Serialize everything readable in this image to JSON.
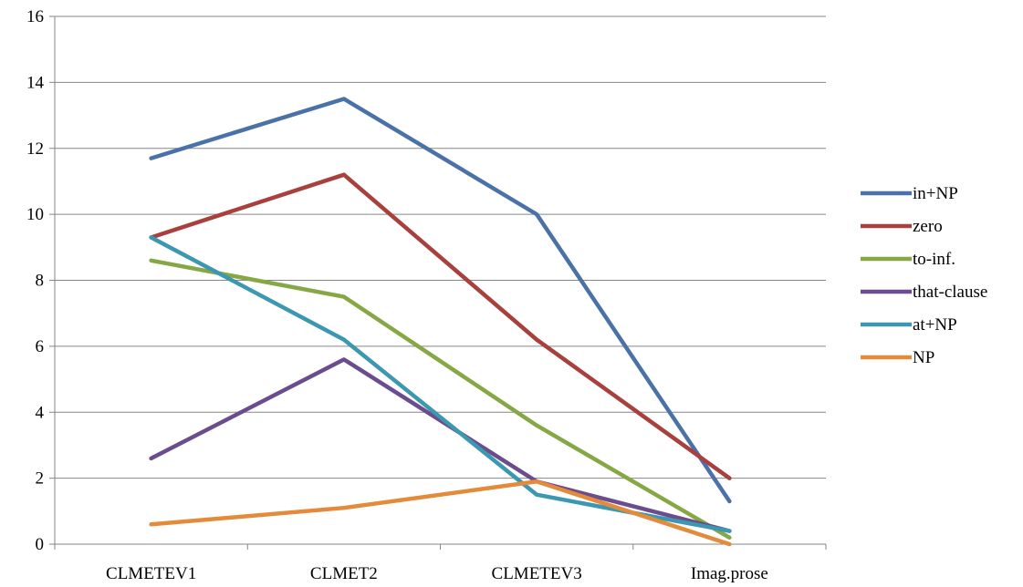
{
  "chart_data": {
    "type": "line",
    "title": "",
    "xlabel": "",
    "ylabel": "",
    "categories": [
      "CLMETEV1",
      "CLMET2",
      "CLMETEV3",
      "Imag.prose"
    ],
    "ylim": [
      0,
      16
    ],
    "yticks": [
      0,
      2,
      4,
      6,
      8,
      10,
      12,
      14,
      16
    ],
    "grid": "horizontal",
    "legend_position": "right",
    "series": [
      {
        "name": "in+NP",
        "color": "#4A72A8",
        "values": [
          11.7,
          13.5,
          10.0,
          1.3
        ]
      },
      {
        "name": "zero",
        "color": "#A8413D",
        "values": [
          9.3,
          11.2,
          6.2,
          2.0
        ]
      },
      {
        "name": "to-inf.",
        "color": "#86A844",
        "values": [
          8.6,
          7.5,
          3.6,
          0.2
        ]
      },
      {
        "name": "that-clause",
        "color": "#6B4C8C",
        "values": [
          2.6,
          5.6,
          1.9,
          0.4
        ]
      },
      {
        "name": "at+NP",
        "color": "#3C98B0",
        "values": [
          9.3,
          6.2,
          1.5,
          0.4
        ]
      },
      {
        "name": "NP",
        "color": "#E38B3A",
        "values": [
          0.6,
          1.1,
          1.9,
          0.0
        ]
      }
    ]
  }
}
